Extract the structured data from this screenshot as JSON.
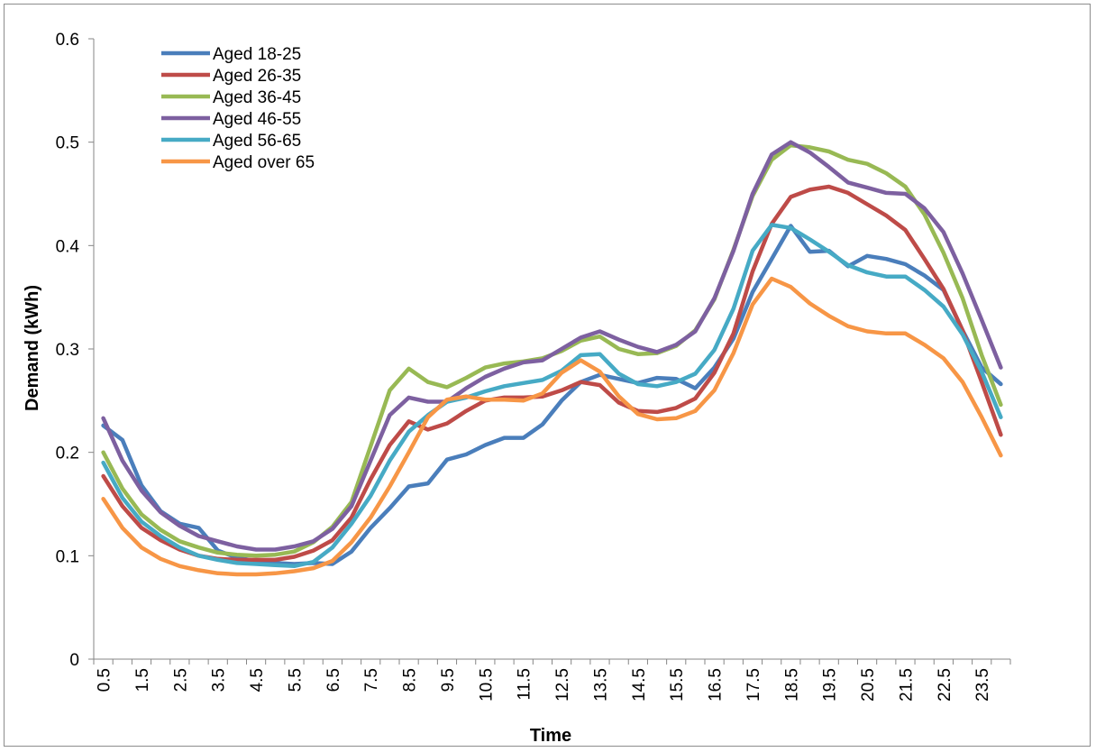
{
  "chart_data": {
    "type": "line",
    "title": "",
    "xlabel": "Time",
    "ylabel": "Demand (kWh)",
    "ylim": [
      0,
      0.6
    ],
    "yticks": [
      "0",
      "0.1",
      "0.2",
      "0.3",
      "0.4",
      "0.5",
      "0.6"
    ],
    "x": [
      0.5,
      1,
      1.5,
      2,
      2.5,
      3,
      3.5,
      4,
      4.5,
      5,
      5.5,
      6,
      6.5,
      7,
      7.5,
      8,
      8.5,
      9,
      9.5,
      10,
      10.5,
      11,
      11.5,
      12,
      12.5,
      13,
      13.5,
      14,
      14.5,
      15,
      15.5,
      16,
      16.5,
      17,
      17.5,
      18,
      18.5,
      19,
      19.5,
      20,
      20.5,
      21,
      21.5,
      22,
      22.5,
      23,
      23.5,
      24
    ],
    "xtick_labels": [
      "0.5",
      "1.5",
      "2.5",
      "3.5",
      "4.5",
      "5.5",
      "6.5",
      "7.5",
      "8.5",
      "9.5",
      "10.5",
      "11.5",
      "12.5",
      "13.5",
      "14.5",
      "15.5",
      "16.5",
      "17.5",
      "18.5",
      "19.5",
      "20.5",
      "21.5",
      "22.5",
      "23.5"
    ],
    "legend_position": "top-left",
    "grid": false,
    "series": [
      {
        "name": "Aged 18-25",
        "color": "#4a7ebb",
        "values": [
          0.226,
          0.212,
          0.168,
          0.143,
          0.131,
          0.127,
          0.105,
          0.098,
          0.095,
          0.093,
          0.092,
          0.093,
          0.092,
          0.104,
          0.127,
          0.146,
          0.167,
          0.17,
          0.193,
          0.198,
          0.207,
          0.214,
          0.214,
          0.227,
          0.25,
          0.268,
          0.275,
          0.271,
          0.267,
          0.272,
          0.271,
          0.262,
          0.282,
          0.31,
          0.355,
          0.387,
          0.419,
          0.394,
          0.395,
          0.38,
          0.39,
          0.387,
          0.382,
          0.371,
          0.357,
          0.318,
          0.282,
          0.266
        ]
      },
      {
        "name": "Aged 26-35",
        "color": "#be4b48",
        "values": [
          0.177,
          0.148,
          0.127,
          0.115,
          0.106,
          0.1,
          0.097,
          0.096,
          0.096,
          0.096,
          0.099,
          0.105,
          0.115,
          0.137,
          0.174,
          0.207,
          0.23,
          0.222,
          0.228,
          0.24,
          0.25,
          0.253,
          0.253,
          0.254,
          0.26,
          0.268,
          0.265,
          0.248,
          0.24,
          0.239,
          0.243,
          0.252,
          0.277,
          0.315,
          0.375,
          0.421,
          0.447,
          0.454,
          0.457,
          0.451,
          0.44,
          0.429,
          0.415,
          0.387,
          0.358,
          0.318,
          0.268,
          0.217
        ]
      },
      {
        "name": "Aged 36-45",
        "color": "#98b954",
        "values": [
          0.2,
          0.165,
          0.14,
          0.125,
          0.114,
          0.108,
          0.103,
          0.101,
          0.1,
          0.101,
          0.104,
          0.113,
          0.128,
          0.152,
          0.206,
          0.26,
          0.281,
          0.268,
          0.263,
          0.272,
          0.282,
          0.286,
          0.288,
          0.291,
          0.298,
          0.308,
          0.312,
          0.3,
          0.295,
          0.296,
          0.303,
          0.318,
          0.348,
          0.396,
          0.448,
          0.483,
          0.497,
          0.495,
          0.491,
          0.483,
          0.479,
          0.47,
          0.457,
          0.43,
          0.393,
          0.349,
          0.294,
          0.246
        ]
      },
      {
        "name": "Aged 46-55",
        "color": "#7d60a0",
        "values": [
          0.233,
          0.192,
          0.163,
          0.142,
          0.129,
          0.119,
          0.114,
          0.109,
          0.106,
          0.106,
          0.109,
          0.114,
          0.126,
          0.148,
          0.192,
          0.236,
          0.253,
          0.249,
          0.249,
          0.262,
          0.273,
          0.281,
          0.287,
          0.289,
          0.3,
          0.311,
          0.317,
          0.309,
          0.302,
          0.297,
          0.304,
          0.317,
          0.349,
          0.395,
          0.45,
          0.488,
          0.5,
          0.49,
          0.476,
          0.461,
          0.456,
          0.451,
          0.45,
          0.436,
          0.413,
          0.373,
          0.328,
          0.282
        ]
      },
      {
        "name": "Aged 56-65",
        "color": "#46aac5",
        "values": [
          0.19,
          0.156,
          0.133,
          0.119,
          0.108,
          0.1,
          0.096,
          0.093,
          0.092,
          0.091,
          0.09,
          0.094,
          0.108,
          0.131,
          0.158,
          0.192,
          0.22,
          0.236,
          0.249,
          0.253,
          0.259,
          0.264,
          0.267,
          0.27,
          0.279,
          0.294,
          0.295,
          0.276,
          0.266,
          0.264,
          0.268,
          0.276,
          0.299,
          0.339,
          0.395,
          0.42,
          0.417,
          0.406,
          0.394,
          0.381,
          0.374,
          0.37,
          0.37,
          0.357,
          0.341,
          0.314,
          0.278,
          0.234
        ]
      },
      {
        "name": "Aged over 65",
        "color": "#f79646",
        "values": [
          0.155,
          0.127,
          0.108,
          0.097,
          0.09,
          0.086,
          0.083,
          0.082,
          0.082,
          0.083,
          0.085,
          0.088,
          0.095,
          0.113,
          0.137,
          0.167,
          0.2,
          0.234,
          0.251,
          0.254,
          0.251,
          0.251,
          0.25,
          0.257,
          0.277,
          0.289,
          0.278,
          0.254,
          0.237,
          0.232,
          0.233,
          0.24,
          0.26,
          0.296,
          0.343,
          0.368,
          0.36,
          0.344,
          0.332,
          0.322,
          0.317,
          0.315,
          0.315,
          0.304,
          0.291,
          0.268,
          0.234,
          0.197
        ]
      }
    ]
  }
}
